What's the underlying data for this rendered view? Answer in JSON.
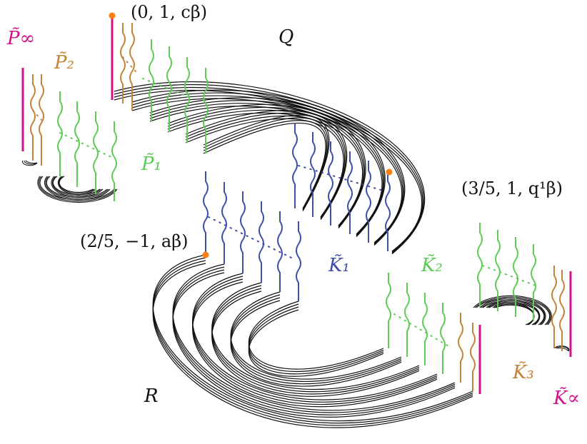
{
  "colors": {
    "magenta": "#d4108a",
    "tan": "#c48339",
    "green": "#5ccc52",
    "blue": "#3d4fa8",
    "orange": "#ff7f0e",
    "black": "#111111"
  },
  "labels": {
    "P_inf": "P̃∞",
    "P2": "P̃₂",
    "P1": "P̃₁",
    "Q": "Q",
    "R": "R",
    "K1": "K̃₁",
    "K2": "K̃₂",
    "K3": "K̃₃",
    "K_alpha": "K̃∝"
  },
  "points": {
    "top": "(0, 1, cβ)",
    "right": "(3/5, 1, q¹β)",
    "left": "(2/5, −1, aβ)"
  }
}
